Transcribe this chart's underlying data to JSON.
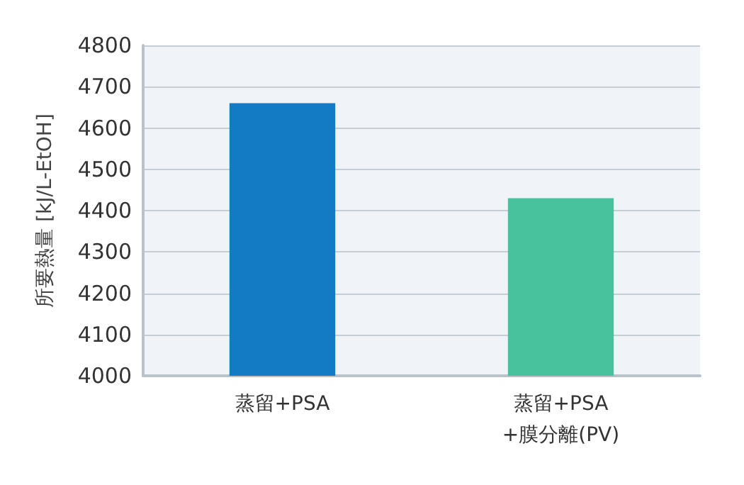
{
  "chart_data": {
    "type": "bar",
    "ylabel": "所要熱量 [kJ/L-EtOH]",
    "categories": [
      "蒸留+PSA",
      "蒸留+PSA\n+膜分離(PV)"
    ],
    "values": [
      4660,
      4430
    ],
    "colors": [
      "#127bc4",
      "#48c29c"
    ],
    "ylim": [
      4000,
      4800
    ],
    "yticks": [
      4000,
      4100,
      4200,
      4300,
      4400,
      4500,
      4600,
      4700,
      4800
    ],
    "grid": "y"
  }
}
